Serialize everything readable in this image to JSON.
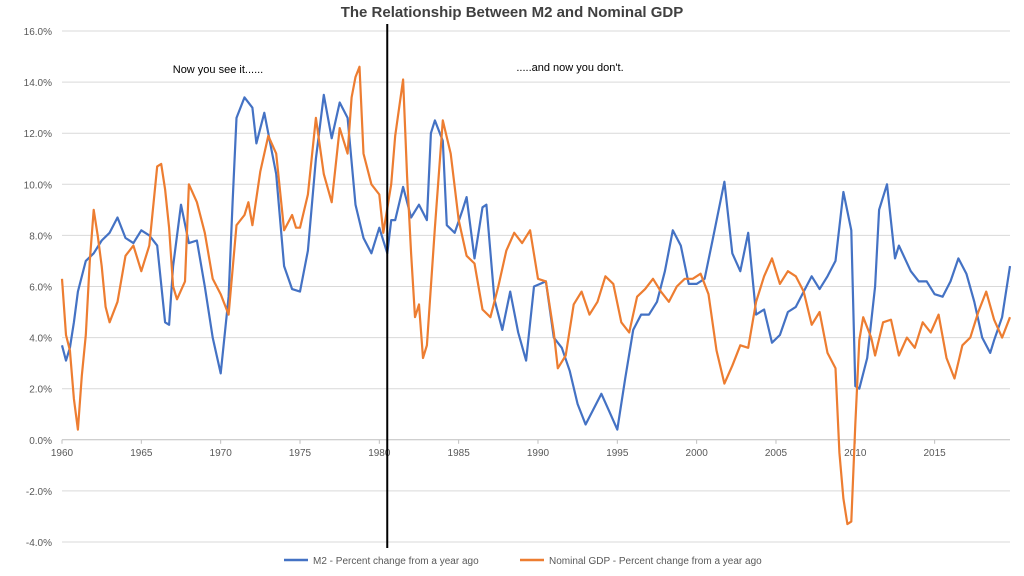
{
  "chart_data": {
    "type": "line",
    "title": "The Relationship Between M2 and Nominal GDP",
    "xlabel": "",
    "ylabel": "",
    "xlim": [
      1960,
      2019.75
    ],
    "ylim": [
      -4,
      16
    ],
    "x_ticks": [
      1960,
      1965,
      1970,
      1975,
      1980,
      1985,
      1990,
      1995,
      2000,
      2005,
      2010,
      2015
    ],
    "y_ticks": [
      -4,
      -2,
      0,
      2,
      4,
      6,
      8,
      10,
      12,
      14,
      16
    ],
    "y_tick_labels": [
      "-4.0%",
      "-2.0%",
      "0.0%",
      "2.0%",
      "4.0%",
      "6.0%",
      "8.0%",
      "10.0%",
      "12.0%",
      "14.0%",
      "16.0%"
    ],
    "grid": true,
    "legend_position": "bottom",
    "annotations": {
      "left": "Now you see it......",
      "right": ".....and now you don't."
    },
    "divider_x": 1980.5,
    "series": [
      {
        "name": "M2 - Percent change from a year ago",
        "color": "#4472c4",
        "points": [
          [
            1960,
            3.7
          ],
          [
            1960.25,
            3.1
          ],
          [
            1960.5,
            3.6
          ],
          [
            1960.75,
            4.6
          ],
          [
            1961,
            5.8
          ],
          [
            1961.5,
            7.0
          ],
          [
            1962,
            7.3
          ],
          [
            1962.5,
            7.8
          ],
          [
            1963,
            8.1
          ],
          [
            1963.5,
            8.7
          ],
          [
            1964,
            7.9
          ],
          [
            1964.5,
            7.7
          ],
          [
            1965,
            8.2
          ],
          [
            1965.5,
            8.0
          ],
          [
            1966,
            7.6
          ],
          [
            1966.5,
            4.6
          ],
          [
            1966.75,
            4.5
          ],
          [
            1967,
            6.8
          ],
          [
            1967.5,
            9.2
          ],
          [
            1968,
            7.7
          ],
          [
            1968.5,
            7.8
          ],
          [
            1969,
            6.0
          ],
          [
            1969.5,
            4.0
          ],
          [
            1970,
            2.6
          ],
          [
            1970.5,
            5.6
          ],
          [
            1970.75,
            9.3
          ],
          [
            1971,
            12.6
          ],
          [
            1971.5,
            13.4
          ],
          [
            1972,
            13.0
          ],
          [
            1972.25,
            11.6
          ],
          [
            1972.75,
            12.8
          ],
          [
            1973.5,
            10.4
          ],
          [
            1974,
            6.8
          ],
          [
            1974.5,
            5.9
          ],
          [
            1975,
            5.8
          ],
          [
            1975.5,
            7.4
          ],
          [
            1976,
            11.0
          ],
          [
            1976.5,
            13.5
          ],
          [
            1977,
            11.8
          ],
          [
            1977.5,
            13.2
          ],
          [
            1978,
            12.6
          ],
          [
            1978.5,
            9.2
          ],
          [
            1979,
            7.9
          ],
          [
            1979.5,
            7.3
          ],
          [
            1980,
            8.3
          ],
          [
            1980.5,
            7.3
          ],
          [
            1980.75,
            8.6
          ],
          [
            1981,
            8.6
          ],
          [
            1981.5,
            9.9
          ],
          [
            1982,
            8.7
          ],
          [
            1982.5,
            9.2
          ],
          [
            1983,
            8.6
          ],
          [
            1983.25,
            12.0
          ],
          [
            1983.5,
            12.5
          ],
          [
            1984,
            11.7
          ],
          [
            1984.25,
            8.4
          ],
          [
            1984.75,
            8.1
          ],
          [
            1985.25,
            9.0
          ],
          [
            1985.5,
            9.5
          ],
          [
            1986,
            7.1
          ],
          [
            1986.5,
            9.1
          ],
          [
            1986.75,
            9.2
          ],
          [
            1987.25,
            5.5
          ],
          [
            1987.75,
            4.3
          ],
          [
            1988.25,
            5.8
          ],
          [
            1988.75,
            4.2
          ],
          [
            1989.25,
            3.1
          ],
          [
            1989.75,
            6.0
          ],
          [
            1990.5,
            6.2
          ],
          [
            1991,
            4.0
          ],
          [
            1991.5,
            3.6
          ],
          [
            1992,
            2.7
          ],
          [
            1992.5,
            1.4
          ],
          [
            1993,
            0.6
          ],
          [
            1993.5,
            1.2
          ],
          [
            1994,
            1.8
          ],
          [
            1994.5,
            1.1
          ],
          [
            1995,
            0.4
          ],
          [
            1995.5,
            2.4
          ],
          [
            1996,
            4.3
          ],
          [
            1996.5,
            4.9
          ],
          [
            1997,
            4.9
          ],
          [
            1997.5,
            5.4
          ],
          [
            1998,
            6.6
          ],
          [
            1998.5,
            8.2
          ],
          [
            1999,
            7.6
          ],
          [
            1999.5,
            6.1
          ],
          [
            2000,
            6.1
          ],
          [
            2000.5,
            6.3
          ],
          [
            2001,
            7.8
          ],
          [
            2001.75,
            10.1
          ],
          [
            2002.25,
            7.3
          ],
          [
            2002.75,
            6.6
          ],
          [
            2003.25,
            8.1
          ],
          [
            2003.75,
            4.9
          ],
          [
            2004.25,
            5.1
          ],
          [
            2004.75,
            3.8
          ],
          [
            2005.25,
            4.1
          ],
          [
            2005.75,
            5.0
          ],
          [
            2006.25,
            5.2
          ],
          [
            2006.75,
            5.8
          ],
          [
            2007.25,
            6.4
          ],
          [
            2007.75,
            5.9
          ],
          [
            2008.25,
            6.4
          ],
          [
            2008.75,
            7.0
          ],
          [
            2009.25,
            9.7
          ],
          [
            2009.75,
            8.2
          ],
          [
            2010,
            2.1
          ],
          [
            2010.25,
            2.0
          ],
          [
            2010.75,
            3.2
          ],
          [
            2011.25,
            6.0
          ],
          [
            2011.5,
            9.0
          ],
          [
            2012,
            10.0
          ],
          [
            2012.5,
            7.1
          ],
          [
            2012.75,
            7.6
          ],
          [
            2013.5,
            6.6
          ],
          [
            2014,
            6.2
          ],
          [
            2014.5,
            6.2
          ],
          [
            2015,
            5.7
          ],
          [
            2015.5,
            5.6
          ],
          [
            2016,
            6.2
          ],
          [
            2016.5,
            7.1
          ],
          [
            2017,
            6.5
          ],
          [
            2017.5,
            5.4
          ],
          [
            2018,
            4.0
          ],
          [
            2018.5,
            3.4
          ],
          [
            2018.75,
            3.9
          ],
          [
            2019.25,
            4.8
          ],
          [
            2019.75,
            6.8
          ]
        ]
      },
      {
        "name": "Nominal GDP - Percent change from a year ago",
        "color": "#ed7d31",
        "points": [
          [
            1960,
            6.3
          ],
          [
            1960.25,
            4.1
          ],
          [
            1960.5,
            3.5
          ],
          [
            1960.75,
            1.6
          ],
          [
            1961,
            0.4
          ],
          [
            1961.25,
            2.5
          ],
          [
            1961.5,
            4.1
          ],
          [
            1961.75,
            7.0
          ],
          [
            1962,
            9.0
          ],
          [
            1962.25,
            8.0
          ],
          [
            1962.5,
            6.8
          ],
          [
            1962.75,
            5.2
          ],
          [
            1963,
            4.6
          ],
          [
            1963.5,
            5.4
          ],
          [
            1964,
            7.2
          ],
          [
            1964.5,
            7.6
          ],
          [
            1965,
            6.6
          ],
          [
            1965.5,
            7.6
          ],
          [
            1966,
            10.7
          ],
          [
            1966.25,
            10.8
          ],
          [
            1966.5,
            9.8
          ],
          [
            1966.75,
            8.3
          ],
          [
            1967,
            6.0
          ],
          [
            1967.25,
            5.5
          ],
          [
            1967.75,
            6.2
          ],
          [
            1968,
            10.0
          ],
          [
            1968.5,
            9.3
          ],
          [
            1969,
            8.1
          ],
          [
            1969.5,
            6.3
          ],
          [
            1970,
            5.7
          ],
          [
            1970.5,
            4.9
          ],
          [
            1971,
            8.4
          ],
          [
            1971.5,
            8.8
          ],
          [
            1971.75,
            9.3
          ],
          [
            1972,
            8.4
          ],
          [
            1972.5,
            10.5
          ],
          [
            1973,
            11.9
          ],
          [
            1973.5,
            11.2
          ],
          [
            1974,
            8.2
          ],
          [
            1974.5,
            8.8
          ],
          [
            1974.75,
            8.3
          ],
          [
            1975,
            8.3
          ],
          [
            1975.5,
            9.6
          ],
          [
            1976,
            12.6
          ],
          [
            1976.5,
            10.4
          ],
          [
            1977,
            9.3
          ],
          [
            1977.5,
            12.2
          ],
          [
            1978,
            11.2
          ],
          [
            1978.25,
            13.4
          ],
          [
            1978.5,
            14.2
          ],
          [
            1978.75,
            14.6
          ],
          [
            1979,
            11.2
          ],
          [
            1979.5,
            10.0
          ],
          [
            1980,
            9.6
          ],
          [
            1980.25,
            8.1
          ],
          [
            1980.75,
            10.0
          ],
          [
            1981,
            11.9
          ],
          [
            1981.5,
            14.1
          ],
          [
            1981.75,
            10.3
          ],
          [
            1982,
            7.3
          ],
          [
            1982.25,
            4.8
          ],
          [
            1982.5,
            5.3
          ],
          [
            1982.75,
            3.2
          ],
          [
            1983,
            3.7
          ],
          [
            1983.5,
            8.3
          ],
          [
            1984,
            12.5
          ],
          [
            1984.5,
            11.2
          ],
          [
            1985,
            8.6
          ],
          [
            1985.5,
            7.2
          ],
          [
            1986,
            6.9
          ],
          [
            1986.5,
            5.1
          ],
          [
            1987,
            4.8
          ],
          [
            1987.5,
            6.0
          ],
          [
            1988,
            7.4
          ],
          [
            1988.5,
            8.1
          ],
          [
            1989,
            7.7
          ],
          [
            1989.5,
            8.2
          ],
          [
            1990,
            6.3
          ],
          [
            1990.5,
            6.2
          ],
          [
            1991,
            4.2
          ],
          [
            1991.25,
            2.8
          ],
          [
            1991.75,
            3.3
          ],
          [
            1992.25,
            5.3
          ],
          [
            1992.75,
            5.8
          ],
          [
            1993.25,
            4.9
          ],
          [
            1993.75,
            5.4
          ],
          [
            1994.25,
            6.4
          ],
          [
            1994.75,
            6.1
          ],
          [
            1995.25,
            4.6
          ],
          [
            1995.75,
            4.2
          ],
          [
            1996.25,
            5.6
          ],
          [
            1996.75,
            5.9
          ],
          [
            1997.25,
            6.3
          ],
          [
            1997.75,
            5.8
          ],
          [
            1998.25,
            5.4
          ],
          [
            1998.75,
            6.0
          ],
          [
            1999.25,
            6.3
          ],
          [
            1999.75,
            6.3
          ],
          [
            2000.25,
            6.5
          ],
          [
            2000.75,
            5.7
          ],
          [
            2001.25,
            3.5
          ],
          [
            2001.75,
            2.2
          ],
          [
            2002.25,
            2.9
          ],
          [
            2002.75,
            3.7
          ],
          [
            2003.25,
            3.6
          ],
          [
            2003.75,
            5.4
          ],
          [
            2004.25,
            6.4
          ],
          [
            2004.75,
            7.1
          ],
          [
            2005.25,
            6.1
          ],
          [
            2005.75,
            6.6
          ],
          [
            2006.25,
            6.4
          ],
          [
            2006.75,
            5.8
          ],
          [
            2007.25,
            4.5
          ],
          [
            2007.75,
            5.0
          ],
          [
            2008.25,
            3.4
          ],
          [
            2008.75,
            2.8
          ],
          [
            2009,
            -0.5
          ],
          [
            2009.25,
            -2.3
          ],
          [
            2009.5,
            -3.3
          ],
          [
            2009.75,
            -3.2
          ],
          [
            2010,
            0.6
          ],
          [
            2010.25,
            3.9
          ],
          [
            2010.5,
            4.8
          ],
          [
            2011,
            4.0
          ],
          [
            2011.25,
            3.3
          ],
          [
            2011.75,
            4.6
          ],
          [
            2012.25,
            4.7
          ],
          [
            2012.75,
            3.3
          ],
          [
            2013.25,
            4.0
          ],
          [
            2013.75,
            3.6
          ],
          [
            2014.25,
            4.6
          ],
          [
            2014.75,
            4.2
          ],
          [
            2015.25,
            4.9
          ],
          [
            2015.75,
            3.2
          ],
          [
            2016.25,
            2.4
          ],
          [
            2016.75,
            3.7
          ],
          [
            2017.25,
            4.0
          ],
          [
            2017.75,
            5.0
          ],
          [
            2018.25,
            5.8
          ],
          [
            2018.75,
            4.7
          ],
          [
            2019.25,
            4.0
          ],
          [
            2019.75,
            4.8
          ]
        ]
      }
    ]
  }
}
